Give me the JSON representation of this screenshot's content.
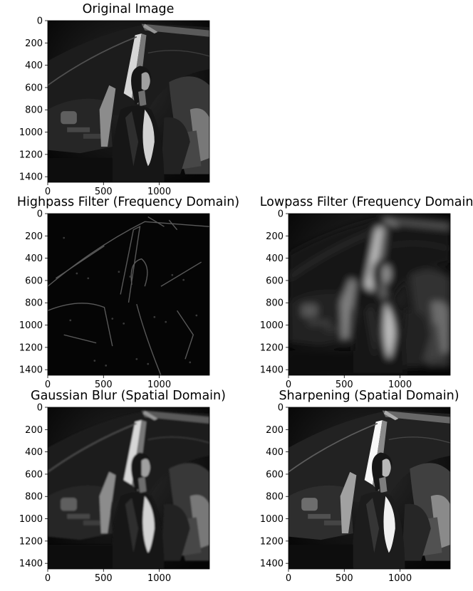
{
  "chart_data": [
    {
      "type": "image",
      "title": "Original Image",
      "variant": "original",
      "xticks": [
        0,
        500,
        1000
      ],
      "yticks": [
        0,
        200,
        400,
        600,
        800,
        1000,
        1200,
        1400
      ],
      "xlim": [
        0,
        1450
      ],
      "ylim": [
        0,
        1450
      ]
    },
    {
      "type": "image",
      "title": "Highpass Filter (Frequency Domain)",
      "variant": "highpass",
      "xticks": [
        0,
        500,
        1000
      ],
      "yticks": [
        0,
        200,
        400,
        600,
        800,
        1000,
        1200,
        1400
      ],
      "xlim": [
        0,
        1450
      ],
      "ylim": [
        0,
        1450
      ]
    },
    {
      "type": "image",
      "title": "Lowpass Filter (Frequency Domain)",
      "variant": "lowpass",
      "xticks": [
        0,
        500,
        1000
      ],
      "yticks": [
        0,
        200,
        400,
        600,
        800,
        1000,
        1200,
        1400
      ],
      "xlim": [
        0,
        1450
      ],
      "ylim": [
        0,
        1450
      ]
    },
    {
      "type": "image",
      "title": "Gaussian Blur (Spatial Domain)",
      "variant": "gaussian",
      "xticks": [
        0,
        500,
        1000
      ],
      "yticks": [
        0,
        200,
        400,
        600,
        800,
        1000,
        1200,
        1400
      ],
      "xlim": [
        0,
        1450
      ],
      "ylim": [
        0,
        1450
      ]
    },
    {
      "type": "image",
      "title": "Sharpening (Spatial Domain)",
      "variant": "sharpen",
      "xticks": [
        0,
        500,
        1000
      ],
      "yticks": [
        0,
        200,
        400,
        600,
        800,
        1000,
        1200,
        1400
      ],
      "xlim": [
        0,
        1450
      ],
      "ylim": [
        0,
        1450
      ]
    }
  ]
}
